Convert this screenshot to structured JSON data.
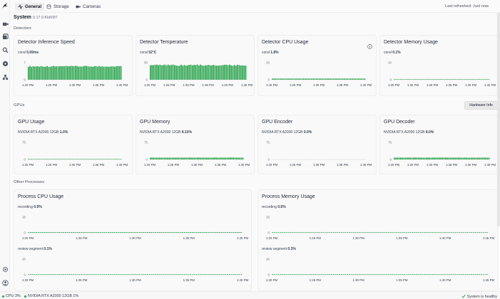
{
  "header": {
    "tabs": [
      {
        "label": "General",
        "icon": "activity-icon"
      },
      {
        "label": "Storage",
        "icon": "database-icon"
      },
      {
        "label": "Cameras",
        "icon": "video-icon"
      }
    ],
    "last_refreshed": "Last refreshed: Just now"
  },
  "system": {
    "title": "System",
    "version": "0.17.0-f0d69f7"
  },
  "sections": {
    "detectors": "Detectors",
    "gpus": "GPUs",
    "other": "Other Processes"
  },
  "hardware_button": "Hardware Info",
  "colors": {
    "accent": "#22a046",
    "line": "#3fa34d"
  },
  "cards": [
    {
      "title": "Detector Inference Speed",
      "series": [
        {
          "name": "coral",
          "value": "5.69ms"
        }
      ],
      "chart_data": {
        "type": "bar",
        "ylim": [
          0,
          7
        ],
        "ticks": [
          "0",
          "7"
        ],
        "x_ticks": [
          "1:20 PM",
          "1:25 PM",
          "1:30 PM",
          "1:35 PM",
          "1:40 PM"
        ],
        "level": 0.8
      }
    },
    {
      "title": "Detector Temperature",
      "series": [
        {
          "name": "coral",
          "value": "52°C"
        }
      ],
      "chart_data": {
        "type": "bar",
        "ylim": [
          0,
          60
        ],
        "ticks": [
          "0",
          "50"
        ],
        "x_ticks": [
          "1:20 PM",
          "1:25 PM",
          "1:30 PM",
          "1:35 PM",
          "1:40 PM",
          "1:45 PM"
        ],
        "level": 0.87
      }
    },
    {
      "title": "Detector CPU Usage",
      "series": [
        {
          "name": "coral",
          "value": "1.8%"
        }
      ],
      "info": "info-icon",
      "chart_data": {
        "type": "bar",
        "ylim": [
          0,
          25
        ],
        "ticks": [
          "0",
          "25"
        ],
        "x_ticks": [
          "1:20 PM",
          "1:25 PM",
          "1:30 PM",
          "1:35 PM",
          "1:40 PM"
        ],
        "level": 0.07
      }
    },
    {
      "title": "Detector Memory Usage",
      "series": [
        {
          "name": "coral",
          "value": "0.1%"
        }
      ],
      "chart_data": {
        "type": "bar",
        "ylim": [
          0,
          20
        ],
        "ticks": [
          "0",
          "20"
        ],
        "x_ticks": [
          "1:20 PM",
          "1:25 PM",
          "1:30 PM",
          "1:35 PM",
          "1:40 PM",
          "1:45 PM"
        ],
        "level": 0.005
      }
    },
    {
      "title": "GPU Usage",
      "series": [
        {
          "name": "NVIDIA RTX A2000 12GB",
          "value": "1.0%"
        }
      ],
      "chart_data": {
        "type": "bar",
        "ylim": [
          0,
          75
        ],
        "ticks": [
          "0",
          "75"
        ],
        "x_ticks": [
          "1:20 PM",
          "1:25 PM",
          "1:30 PM",
          "1:35 PM",
          "1:40 PM"
        ],
        "level": 0.013
      }
    },
    {
      "title": "GPU Memory",
      "series": [
        {
          "name": "NVIDIA RTX A2000 12GB",
          "value": "8.15%"
        }
      ],
      "chart_data": {
        "type": "bar",
        "ylim": [
          0,
          75
        ],
        "ticks": [
          "0",
          "75"
        ],
        "x_ticks": [
          "1:20 PM",
          "1:25 PM",
          "1:30 PM",
          "1:35 PM",
          "1:40 PM"
        ],
        "level": 0.11
      }
    },
    {
      "title": "GPU Encoder",
      "series": [
        {
          "name": "NVIDIA RTX A2000 12GB",
          "value": "0.0%"
        }
      ],
      "chart_data": {
        "type": "bar",
        "ylim": [
          0,
          75
        ],
        "ticks": [
          "0",
          "75"
        ],
        "x_ticks": [
          "1:20 PM",
          "1:25 PM",
          "1:30 PM",
          "1:35 PM",
          "1:40 PM"
        ],
        "level": 0.0
      }
    },
    {
      "title": "GPU Decoder",
      "series": [
        {
          "name": "NVIDIA RTX A2000 12GB",
          "value": "8.0%"
        }
      ],
      "chart_data": {
        "type": "bar",
        "ylim": [
          0,
          75
        ],
        "ticks": [
          "0",
          "75"
        ],
        "x_ticks": [
          "1:20 PM",
          "1:25 PM",
          "1:30 PM",
          "1:35 PM",
          "1:40 PM",
          "1:45 PM"
        ],
        "level": 0.11
      }
    },
    {
      "title": "Process CPU Usage",
      "series": [
        {
          "name": "recording",
          "value": "0.9%",
          "ylim": [
            0,
            25
          ],
          "ticks": [
            "0",
            "25"
          ],
          "level": 0.04
        },
        {
          "name": "review segment",
          "value": "0.1%",
          "ylim": [
            0,
            20
          ],
          "ticks": [
            "0",
            "20"
          ],
          "level": 0.005
        }
      ],
      "chart_data": {
        "type": "bar",
        "x_ticks": [
          "1:20 PM",
          "1:25 PM",
          "1:30 PM",
          "1:35 PM",
          "1:40 PM"
        ]
      }
    },
    {
      "title": "Process Memory Usage",
      "series": [
        {
          "name": "recording",
          "value": "0.6%",
          "ylim": [
            0,
            25
          ],
          "ticks": [
            "0",
            "25"
          ],
          "level": 0.024
        },
        {
          "name": "review segment",
          "value": "0.3%",
          "ylim": [
            0,
            20
          ],
          "ticks": [
            "0",
            "20"
          ],
          "level": 0.015
        }
      ],
      "chart_data": {
        "type": "bar",
        "x_ticks": [
          "1:20 PM",
          "1:25 PM",
          "1:30 PM",
          "1:35 PM",
          "1:40 PM",
          "1:45 PM"
        ]
      }
    }
  ],
  "statusbar": {
    "cpu": "CPU 3%",
    "gpu": "NVIDIA RTX A2000 12GB 1%",
    "health": "System is healthy"
  }
}
